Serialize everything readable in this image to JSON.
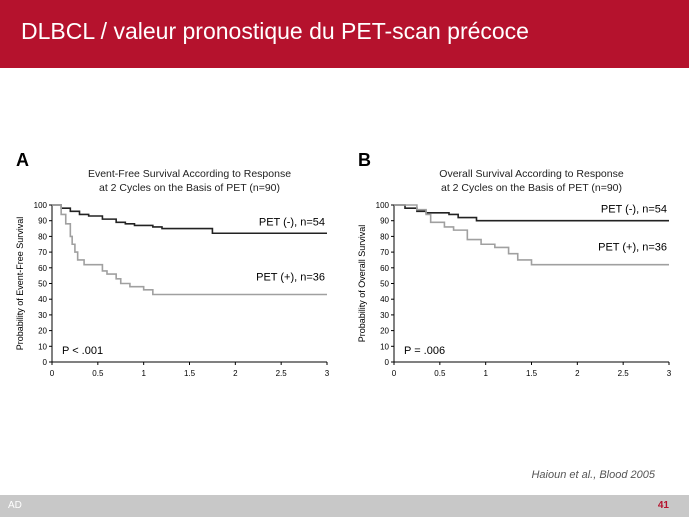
{
  "slide": {
    "title": "DLBCL / valeur pronostique du PET-scan précoce",
    "citation": "Haioun et al., Blood 2005",
    "footer_left": "AD",
    "page_number": "41"
  },
  "colors": {
    "header": "#b5122d",
    "pet_negative": "#222222",
    "pet_positive": "#a0a0a0"
  },
  "chart_data": [
    {
      "type": "line",
      "panel_label": "A",
      "title_lines": [
        "Event-Free Survival According to Response",
        "at 2 Cycles on the Basis of PET (n=90)"
      ],
      "xlabel": "",
      "ylabel": "Probability of Event-Free Survival",
      "xlim": [
        0,
        3
      ],
      "ylim": [
        0,
        100
      ],
      "xticks": [
        "0",
        "0.5",
        "1",
        "1.5",
        "2",
        "2.5",
        "3"
      ],
      "yticks": [
        "0",
        "10",
        "20",
        "30",
        "40",
        "50",
        "60",
        "70",
        "80",
        "90",
        "100"
      ],
      "annotation": "P < .001",
      "series": [
        {
          "name": "PET (-), n=54",
          "step": [
            [
              0,
              100
            ],
            [
              0.1,
              98
            ],
            [
              0.2,
              96
            ],
            [
              0.3,
              94
            ],
            [
              0.4,
              93
            ],
            [
              0.55,
              91
            ],
            [
              0.7,
              89
            ],
            [
              0.8,
              88
            ],
            [
              0.9,
              87
            ],
            [
              1.1,
              86
            ],
            [
              1.2,
              85
            ],
            [
              1.75,
              82
            ],
            [
              3,
              82
            ]
          ]
        },
        {
          "name": "PET (+), n=36",
          "step": [
            [
              0,
              100
            ],
            [
              0.1,
              94
            ],
            [
              0.15,
              88
            ],
            [
              0.2,
              80
            ],
            [
              0.22,
              75
            ],
            [
              0.25,
              70
            ],
            [
              0.28,
              65
            ],
            [
              0.35,
              62
            ],
            [
              0.55,
              58
            ],
            [
              0.6,
              56
            ],
            [
              0.7,
              53
            ],
            [
              0.75,
              50
            ],
            [
              0.85,
              48
            ],
            [
              1.0,
              46
            ],
            [
              1.1,
              43
            ],
            [
              3,
              43
            ]
          ]
        }
      ]
    },
    {
      "type": "line",
      "panel_label": "B",
      "title_lines": [
        "Overall Survival According to Response",
        "at 2 Cycles on the Basis of PET (n=90)"
      ],
      "xlabel": "",
      "ylabel": "Probability of Overall Survival",
      "xlim": [
        0,
        3
      ],
      "ylim": [
        0,
        100
      ],
      "xticks": [
        "0",
        "0.5",
        "1",
        "1.5",
        "2",
        "2.5",
        "3"
      ],
      "yticks": [
        "0",
        "10",
        "20",
        "30",
        "40",
        "50",
        "60",
        "70",
        "80",
        "90",
        "100"
      ],
      "annotation": "P = .006",
      "series": [
        {
          "name": "PET (-), n=54",
          "step": [
            [
              0,
              100
            ],
            [
              0.12,
              98
            ],
            [
              0.25,
              96
            ],
            [
              0.35,
              95
            ],
            [
              0.6,
              94
            ],
            [
              0.7,
              92
            ],
            [
              0.9,
              90
            ],
            [
              3,
              90
            ]
          ]
        },
        {
          "name": "PET (+), n=36",
          "step": [
            [
              0,
              100
            ],
            [
              0.25,
              97
            ],
            [
              0.35,
              94
            ],
            [
              0.4,
              89
            ],
            [
              0.55,
              86
            ],
            [
              0.65,
              84
            ],
            [
              0.8,
              78
            ],
            [
              0.95,
              75
            ],
            [
              1.1,
              73
            ],
            [
              1.25,
              69
            ],
            [
              1.35,
              65
            ],
            [
              1.5,
              62
            ],
            [
              3,
              62
            ]
          ]
        }
      ]
    }
  ]
}
